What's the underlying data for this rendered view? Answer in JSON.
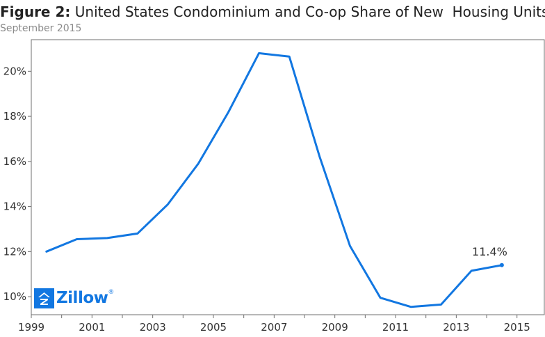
{
  "title_prefix": "Figure 2:",
  "title_main": "United States Condominium and Co-op Share of New  Housing Units",
  "subtitle": "September 2015",
  "logo_text": "Zillow",
  "logo_mark": "®",
  "colors": {
    "line": "#1277e1",
    "axis": "#6f6f6f",
    "logo": "#1277e1"
  },
  "chart_data": {
    "type": "line",
    "title": "United States Condominium and Co-op Share of New  Housing Units",
    "subtitle": "September 2015",
    "xlabel": "",
    "ylabel": "",
    "x": [
      1999,
      2000,
      2001,
      2002,
      2003,
      2004,
      2005,
      2006,
      2007,
      2008,
      2009,
      2010,
      2011,
      2012,
      2013,
      2014,
      2015
    ],
    "series": [
      {
        "values": [
          12.0,
          12.55,
          12.6,
          12.8,
          14.1,
          15.9,
          18.2,
          20.8,
          20.65,
          16.2,
          12.25,
          9.95,
          9.55,
          9.65,
          11.15,
          11.4
        ]
      }
    ],
    "x_values": [
      1999.5,
      2000.5,
      2001.5,
      2002.5,
      2003.5,
      2004.5,
      2005.5,
      2006.5,
      2007.5,
      2008.5,
      2009.5,
      2010.5,
      2011.5,
      2012.5,
      2013.5,
      2014.5
    ],
    "x_ticks": [
      "1999",
      "2001",
      "2003",
      "2005",
      "2007",
      "2009",
      "2011",
      "2013",
      "2015"
    ],
    "y_ticks": [
      "10%",
      "12%",
      "14%",
      "16%",
      "18%",
      "20%"
    ],
    "xlim": [
      1999,
      2015.9
    ],
    "ylim": [
      9.2,
      21.4
    ],
    "end_label": "11.4%",
    "grid": false,
    "legend": "none"
  }
}
